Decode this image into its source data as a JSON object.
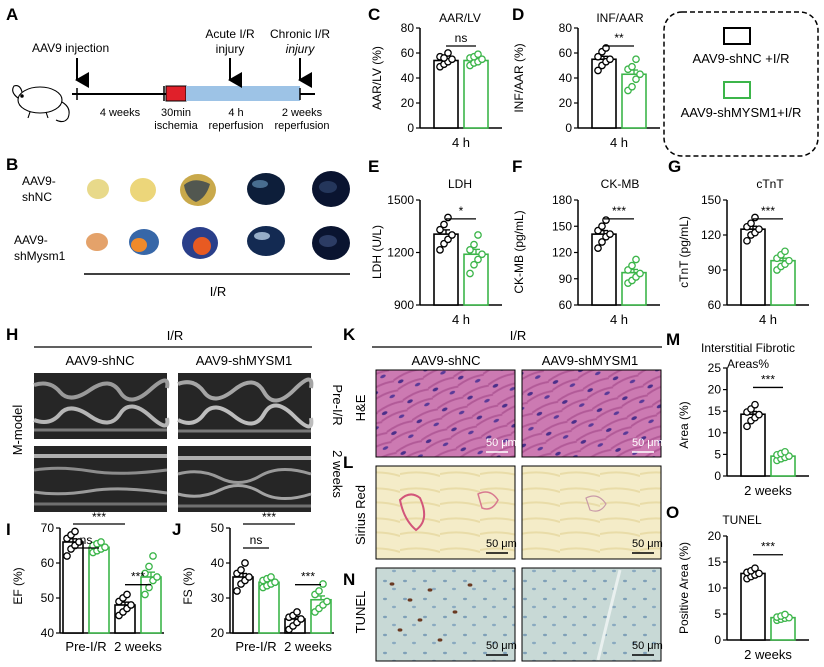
{
  "panel_labels": {
    "A": "A",
    "B": "B",
    "C": "C",
    "D": "D",
    "E": "E",
    "F": "F",
    "G": "G",
    "H": "H",
    "I": "I",
    "J": "J",
    "K": "K",
    "L": "L",
    "M": "M",
    "N": "N",
    "O": "O"
  },
  "colors": {
    "nc": "#000000",
    "shm": "#3cb54a",
    "ischemia": "#e0202a",
    "reperfusion": "#9dc3e6",
    "he_bg": "#c66fa8",
    "sirius_bg": "#f6efcf",
    "tunel_bg": "#c9d8d5",
    "echo_bg": "#262626"
  },
  "legend": {
    "nc": "AAV9-shNC +I/R",
    "shm": "AAV9-shMYSM1+I/R"
  },
  "panelA": {
    "aav9_injection": "AAV9 injection",
    "acute_line1": "Acute I/R",
    "acute_line2": "injury",
    "chronic_line1": "Chronic I/R",
    "chronic_line2": "injury",
    "weeks4": "4 weeks",
    "min30_line1": "30min",
    "min30_line2": "ischemia",
    "h4_line1": "4 h",
    "h4_line2": "reperfusion",
    "w2_line1": "2 weeks",
    "w2_line2": "reperfusion"
  },
  "panelB": {
    "row1_line1": "AAV9-",
    "row1_line2": "shNC",
    "row2_line1": "AAV9-",
    "row2_line2": "shMysm1",
    "xlabel": "I/R"
  },
  "panelH": {
    "ir": "I/R",
    "col1": "AAV9-shNC",
    "col2": "AAV9-shMYSM1",
    "row1": "Pre-I/R",
    "row2": "2 weeks",
    "ylabel": "M-model"
  },
  "panelK": {
    "ir": "I/R",
    "col1": "AAV9-shNC",
    "col2": "AAV9-shMYSM1",
    "row_he": "H&E",
    "row_sirius": "Sirius Red",
    "row_tunel": "TUNEL",
    "scalebar": "50 μm"
  },
  "chart_data": [
    {
      "id": "C",
      "type": "bar",
      "title": "AAR/LV",
      "ylabel": "AAR/LV (%)",
      "ylim": [
        0,
        80
      ],
      "ticks": [
        0,
        20,
        40,
        60,
        80
      ],
      "categories": [
        "4 h"
      ],
      "xlabel": "4 h",
      "series": [
        {
          "name": "AAV9-shNC +I/R",
          "values": [
            54
          ],
          "points": [
            49,
            51,
            53,
            55,
            57,
            56,
            60
          ]
        },
        {
          "name": "AAV9-shMYSM1+I/R",
          "values": [
            54
          ],
          "points": [
            50,
            52,
            53,
            55,
            56,
            57,
            59
          ]
        }
      ],
      "sig": [
        {
          "label": "ns"
        }
      ]
    },
    {
      "id": "D",
      "type": "bar",
      "title": "INF/AAR",
      "ylabel": "INF/AAR (%)",
      "ylim": [
        0,
        80
      ],
      "ticks": [
        0,
        20,
        40,
        60,
        80
      ],
      "categories": [
        "4 h"
      ],
      "xlabel": "4 h",
      "series": [
        {
          "name": "AAV9-shNC +I/R",
          "values": [
            55
          ],
          "points": [
            46,
            50,
            53,
            55,
            57,
            61,
            64
          ]
        },
        {
          "name": "AAV9-shMYSM1+I/R",
          "values": [
            43
          ],
          "points": [
            30,
            33,
            39,
            43,
            47,
            49,
            55
          ]
        }
      ],
      "sig": [
        {
          "label": "**"
        }
      ]
    },
    {
      "id": "E",
      "type": "bar",
      "title": "LDH",
      "ylabel": "LDH (U/L)",
      "ylim": [
        900,
        1500
      ],
      "ticks": [
        900,
        1200,
        1500
      ],
      "categories": [
        "4 h"
      ],
      "xlabel": "4 h",
      "series": [
        {
          "name": "AAV9-shNC +I/R",
          "values": [
            1305
          ],
          "points": [
            1215,
            1250,
            1275,
            1300,
            1330,
            1360,
            1400
          ]
        },
        {
          "name": "AAV9-shMYSM1+I/R",
          "values": [
            1190
          ],
          "points": [
            1080,
            1130,
            1160,
            1190,
            1215,
            1245,
            1300
          ]
        }
      ],
      "sig": [
        {
          "label": "*"
        }
      ]
    },
    {
      "id": "F",
      "type": "bar",
      "title": "CK-MB",
      "ylabel": "CK-MB (pg/mL)",
      "ylim": [
        60,
        180
      ],
      "ticks": [
        60,
        90,
        120,
        150,
        180
      ],
      "categories": [
        "4 h"
      ],
      "xlabel": "4 h",
      "series": [
        {
          "name": "AAV9-shNC +I/R",
          "values": [
            141
          ],
          "points": [
            125,
            132,
            138,
            141,
            145,
            150,
            157
          ]
        },
        {
          "name": "AAV9-shMYSM1+I/R",
          "values": [
            97
          ],
          "points": [
            85,
            88,
            92,
            96,
            100,
            105,
            112
          ]
        }
      ],
      "sig": [
        {
          "label": "***"
        }
      ]
    },
    {
      "id": "G",
      "type": "bar",
      "title": "cTnT",
      "ylabel": "cTnT (pg/mL)",
      "ylim": [
        60,
        150
      ],
      "ticks": [
        60,
        90,
        120,
        150
      ],
      "categories": [
        "4 h"
      ],
      "xlabel": "4 h",
      "series": [
        {
          "name": "AAV9-shNC +I/R",
          "values": [
            125
          ],
          "points": [
            115,
            120,
            122,
            125,
            127,
            130,
            135
          ]
        },
        {
          "name": "AAV9-shMYSM1+I/R",
          "values": [
            98
          ],
          "points": [
            90,
            93,
            95,
            98,
            100,
            103,
            106
          ]
        }
      ],
      "sig": [
        {
          "label": "***"
        }
      ]
    },
    {
      "id": "I",
      "type": "bar",
      "title": "",
      "ylabel": "EF (%)",
      "ylim": [
        40,
        70
      ],
      "ticks": [
        40,
        50,
        60,
        70
      ],
      "categories": [
        "Pre-I/R",
        "2 weeks"
      ],
      "series": [
        {
          "name": "AAV9-shNC +I/R",
          "values": [
            66,
            48
          ],
          "points": [
            [
              62,
              64,
              65,
              66,
              67,
              68,
              69
            ],
            [
              45,
              46,
              47,
              48,
              49,
              50,
              51
            ]
          ]
        },
        {
          "name": "AAV9-shMYSM1+I/R",
          "values": [
            64.5,
            56
          ],
          "points": [
            [
              63,
              63.5,
              64,
              64.5,
              65,
              65.5,
              66
            ],
            [
              51,
              53,
              55,
              56,
              57,
              59,
              62
            ]
          ]
        }
      ],
      "sig": [
        {
          "label": "***"
        },
        {
          "label": "ns"
        },
        {
          "label": "***"
        }
      ]
    },
    {
      "id": "J",
      "type": "bar",
      "title": "",
      "ylabel": "FS (%)",
      "ylim": [
        20,
        50
      ],
      "ticks": [
        20,
        30,
        40,
        50
      ],
      "categories": [
        "Pre-I/R",
        "2 weeks"
      ],
      "series": [
        {
          "name": "AAV9-shNC +I/R",
          "values": [
            36,
            24
          ],
          "points": [
            [
              32,
              34,
              35,
              36,
              37,
              38,
              40
            ],
            [
              21,
              22,
              23,
              24,
              24.5,
              25,
              26
            ]
          ]
        },
        {
          "name": "AAV9-shMYSM1+I/R",
          "values": [
            34.5,
            29.5
          ],
          "points": [
            [
              33,
              33.5,
              34,
              34.5,
              35,
              35.5,
              36
            ],
            [
              26,
              27,
              28,
              29,
              31,
              32,
              34
            ]
          ]
        }
      ],
      "sig": [
        {
          "label": "***"
        },
        {
          "label": "ns"
        },
        {
          "label": "***"
        }
      ]
    },
    {
      "id": "M",
      "type": "bar",
      "title": "Interstitial Fibrotic",
      "title2": "Areas%",
      "ylabel": "Area (%)",
      "ylim": [
        0,
        25
      ],
      "ticks": [
        0,
        5,
        10,
        15,
        20,
        25
      ],
      "categories": [
        "2 weeks"
      ],
      "xlabel": "2 weeks",
      "series": [
        {
          "name": "AAV9-shNC +I/R",
          "values": [
            14.3
          ],
          "points": [
            11.5,
            12.8,
            13.5,
            14.2,
            14.8,
            15.5,
            16.5
          ]
        },
        {
          "name": "AAV9-shMYSM1+I/R",
          "values": [
            4.6
          ],
          "points": [
            3.6,
            4.0,
            4.3,
            4.6,
            4.9,
            5.2,
            5.6
          ]
        }
      ],
      "sig": [
        {
          "label": "***"
        }
      ]
    },
    {
      "id": "O",
      "type": "bar",
      "title": "TUNEL",
      "ylabel": "Positive Area (%)",
      "ylim": [
        0,
        20
      ],
      "ticks": [
        0,
        5,
        10,
        15,
        20
      ],
      "categories": [
        "2 weeks"
      ],
      "xlabel": "2 weeks",
      "series": [
        {
          "name": "AAV9-shNC +I/R",
          "values": [
            12.8
          ],
          "points": [
            11.8,
            12.2,
            12.5,
            12.8,
            13.0,
            13.3,
            13.8
          ]
        },
        {
          "name": "AAV9-shMYSM1+I/R",
          "values": [
            4.3
          ],
          "points": [
            3.8,
            4.0,
            4.2,
            4.3,
            4.4,
            4.6,
            4.9
          ]
        }
      ],
      "sig": [
        {
          "label": "***"
        }
      ]
    }
  ]
}
